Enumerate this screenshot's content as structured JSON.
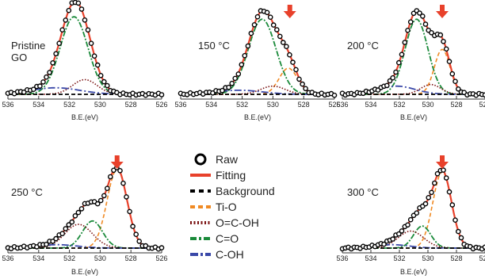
{
  "chart_data": [
    {
      "type": "line",
      "panel_label": [
        "Pristine",
        "GO"
      ],
      "xlabel": "B.E.(eV)",
      "xlim": [
        536,
        526
      ],
      "x_ticks": [
        "536",
        "534",
        "532",
        "530",
        "528",
        "526"
      ],
      "peaks": [
        {
          "component": "C=O",
          "center": 531.7,
          "height": 0.95,
          "width": 0.9
        },
        {
          "component": "O=C-OH",
          "center": 531.0,
          "height": 0.18,
          "width": 0.8
        },
        {
          "component": "C-OH",
          "center": 532.9,
          "height": 0.08,
          "width": 1.6
        }
      ],
      "arrow_at": null
    },
    {
      "type": "line",
      "panel_label": [
        "150 °C"
      ],
      "xlabel": "B.E.(eV)",
      "xlim": [
        536,
        526
      ],
      "x_ticks": [
        "536",
        "534",
        "532",
        "530",
        "528",
        "526"
      ],
      "peaks": [
        {
          "component": "C=O",
          "center": 530.7,
          "height": 0.92,
          "width": 0.9
        },
        {
          "component": "Ti-O",
          "center": 529.0,
          "height": 0.32,
          "width": 0.6
        },
        {
          "component": "O=C-OH",
          "center": 530.0,
          "height": 0.1,
          "width": 0.8
        },
        {
          "component": "C-OH",
          "center": 532.2,
          "height": 0.05,
          "width": 1.5
        }
      ],
      "arrow_at": 528.9
    },
    {
      "type": "line",
      "panel_label": [
        "200 °C"
      ],
      "xlabel": "B.E.(eV)",
      "xlim": [
        536,
        526
      ],
      "x_ticks": [
        "536",
        "534",
        "532",
        "530",
        "528",
        "526"
      ],
      "peaks": [
        {
          "component": "C=O",
          "center": 530.8,
          "height": 0.92,
          "width": 0.8
        },
        {
          "component": "Ti-O",
          "center": 529.0,
          "height": 0.55,
          "width": 0.55
        },
        {
          "component": "O=C-OH",
          "center": 529.8,
          "height": 0.12,
          "width": 0.7
        },
        {
          "component": "C-OH",
          "center": 532.2,
          "height": 0.1,
          "width": 1.3
        }
      ],
      "arrow_at": 529.0
    },
    {
      "type": "line",
      "panel_label": [
        "250 °C"
      ],
      "xlabel": "B.E.(eV)",
      "xlim": [
        536,
        526
      ],
      "x_ticks": [
        "536",
        "534",
        "532",
        "530",
        "528",
        "526"
      ],
      "peaks": [
        {
          "component": "Ti-O",
          "center": 528.9,
          "height": 0.93,
          "width": 0.65
        },
        {
          "component": "C=O",
          "center": 530.5,
          "height": 0.32,
          "width": 0.65
        },
        {
          "component": "O=C-OH",
          "center": 531.4,
          "height": 0.28,
          "width": 0.9
        },
        {
          "component": "C-OH",
          "center": 532.8,
          "height": 0.04,
          "width": 1.3
        }
      ],
      "arrow_at": 528.9
    },
    {
      "type": "line",
      "panel_label": [
        "300 °C"
      ],
      "xlabel": "B.E.(eV)",
      "xlim": [
        536,
        526
      ],
      "x_ticks": [
        "536",
        "534",
        "532",
        "530",
        "528",
        "526"
      ],
      "peaks": [
        {
          "component": "Ti-O",
          "center": 529.0,
          "height": 0.9,
          "width": 0.65
        },
        {
          "component": "C=O",
          "center": 530.4,
          "height": 0.26,
          "width": 0.6
        },
        {
          "component": "O=C-OH",
          "center": 531.2,
          "height": 0.2,
          "width": 0.9
        },
        {
          "component": "C-OH",
          "center": 532.5,
          "height": 0.04,
          "width": 1.2
        }
      ],
      "arrow_at": 529.0
    }
  ],
  "legend": {
    "items": [
      {
        "label": "Raw",
        "style": "circle",
        "color": "#000000"
      },
      {
        "label": "Fitting",
        "style": "solid",
        "color": "#e8412b"
      },
      {
        "label": "Background",
        "style": "dash-dot",
        "color": "#000000"
      },
      {
        "label": "Ti-O",
        "style": "dashed",
        "color": "#f08a24"
      },
      {
        "label": "O=C-OH",
        "style": "dotted",
        "color": "#7a1010"
      },
      {
        "label": "C=O",
        "style": "dashdot",
        "color": "#1a8a3a"
      },
      {
        "label": "C-OH",
        "style": "longdash",
        "color": "#3a48a8"
      }
    ]
  },
  "colors": {
    "raw": "#000000",
    "fitting": "#e8412b",
    "background": "#000000",
    "Ti-O": "#f08a24",
    "O=C-OH": "#7a1010",
    "C=O": "#1a8a3a",
    "C-OH": "#3a48a8",
    "arrow": "#e8412b"
  }
}
